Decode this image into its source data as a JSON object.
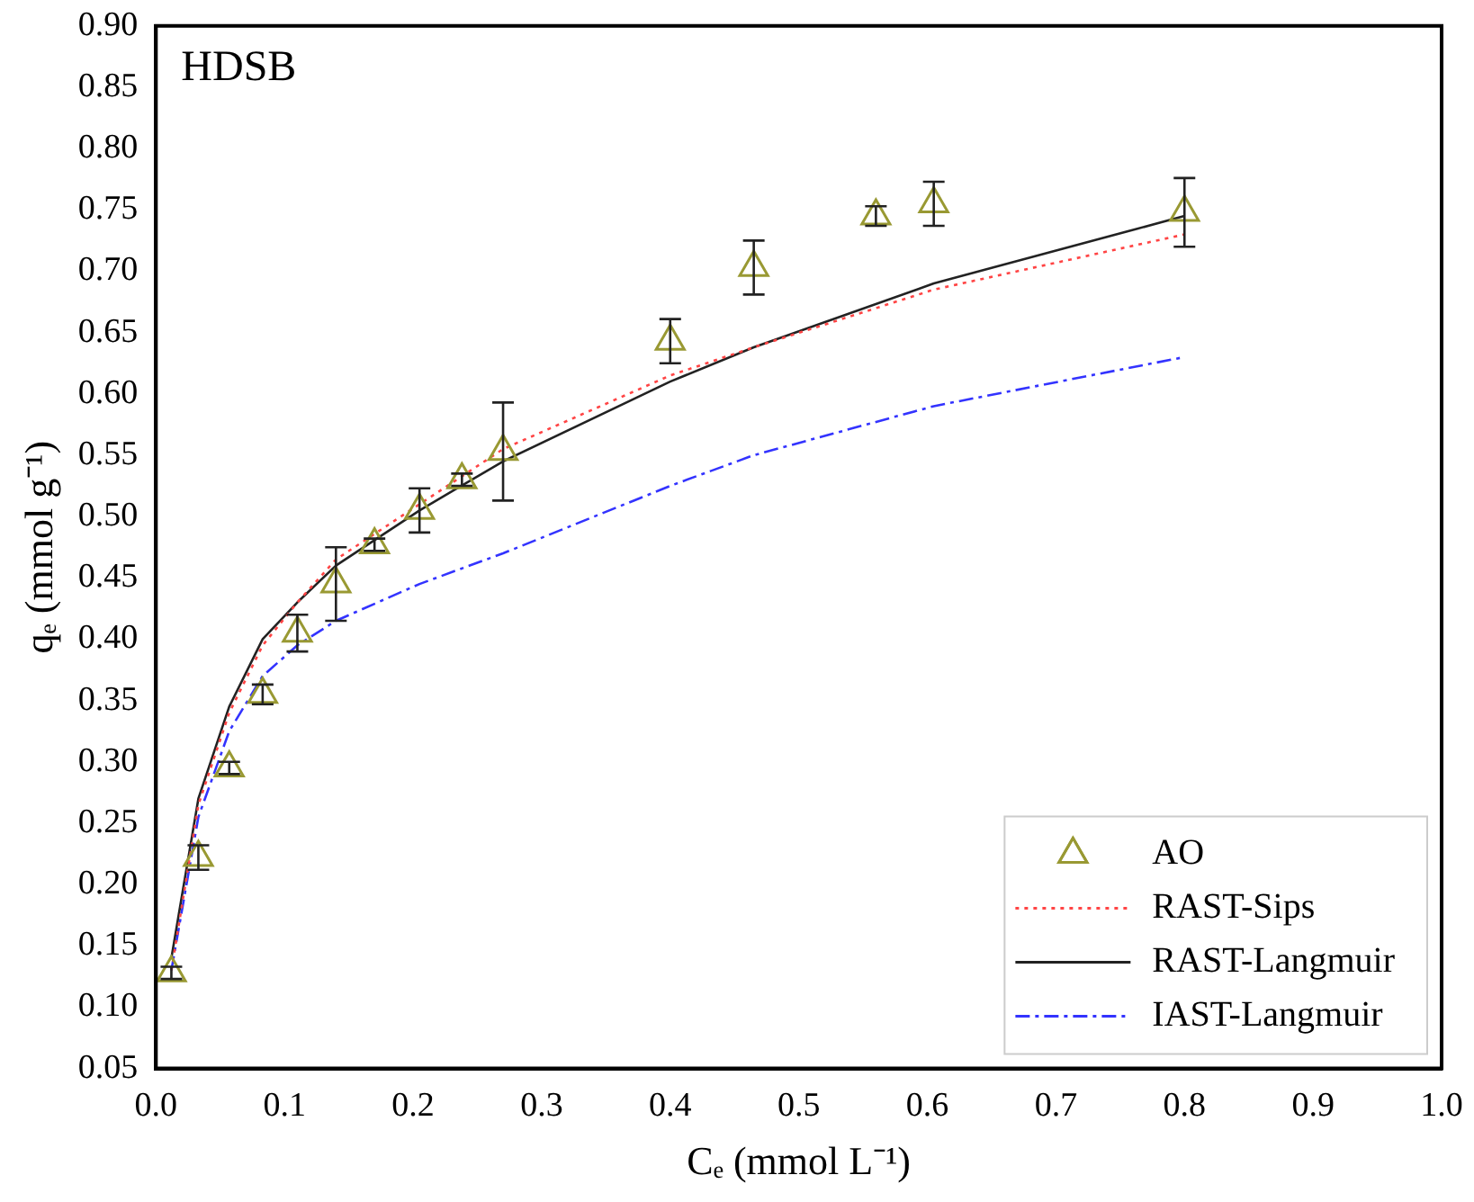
{
  "chart_data": {
    "type": "scatter",
    "xlabel": "Cₑ (mmol L⁻¹)",
    "ylabel": "qₑ (mmol g⁻¹)",
    "annotations": [
      "HDSB"
    ],
    "xlim": [
      0,
      1
    ],
    "ylim": [
      0.05,
      0.9
    ],
    "xticks": [
      {
        "value": 0,
        "label": "0.0"
      },
      {
        "value": 0.1,
        "label": "0.1"
      },
      {
        "value": 0.2,
        "label": "0.2"
      },
      {
        "value": 0.3,
        "label": "0.3"
      },
      {
        "value": 0.4,
        "label": "0.4"
      },
      {
        "value": 0.5,
        "label": "0.5"
      },
      {
        "value": 0.6,
        "label": "0.6"
      },
      {
        "value": 0.7,
        "label": "0.7"
      },
      {
        "value": 0.8,
        "label": "0.8"
      },
      {
        "value": 0.9,
        "label": "0.9"
      },
      {
        "value": 1,
        "label": "1.0"
      }
    ],
    "yticks": [
      {
        "value": 0.05,
        "label": "0.05"
      },
      {
        "value": 0.1,
        "label": "0.10"
      },
      {
        "value": 0.15,
        "label": "0.15"
      },
      {
        "value": 0.2,
        "label": "0.20"
      },
      {
        "value": 0.25,
        "label": "0.25"
      },
      {
        "value": 0.3,
        "label": "0.30"
      },
      {
        "value": 0.35,
        "label": "0.35"
      },
      {
        "value": 0.4,
        "label": "0.40"
      },
      {
        "value": 0.45,
        "label": "0.45"
      },
      {
        "value": 0.5,
        "label": "0.50"
      },
      {
        "value": 0.55,
        "label": "0.55"
      },
      {
        "value": 0.6,
        "label": "0.60"
      },
      {
        "value": 0.65,
        "label": "0.65"
      },
      {
        "value": 0.7,
        "label": "0.70"
      },
      {
        "value": 0.75,
        "label": "0.75"
      },
      {
        "value": 0.8,
        "label": "0.80"
      },
      {
        "value": 0.85,
        "label": "0.85"
      },
      {
        "value": 0.9,
        "label": "0.90"
      }
    ],
    "grid": false,
    "legend": "bottom right",
    "series": [
      {
        "name": "AO",
        "type": "scatter",
        "marker": "triangle",
        "color": "#999933",
        "x": [
          0.012,
          0.033,
          0.057,
          0.083,
          0.11,
          0.14,
          0.17,
          0.205,
          0.238,
          0.27,
          0.4,
          0.465,
          0.56,
          0.605,
          0.8
        ],
        "values": [
          0.128,
          0.222,
          0.295,
          0.355,
          0.405,
          0.445,
          0.477,
          0.505,
          0.53,
          0.553,
          0.643,
          0.703,
          0.745,
          0.755,
          0.748
        ],
        "errors": [
          0.005,
          0.01,
          0.005,
          0.008,
          0.015,
          0.03,
          0.005,
          0.018,
          0.005,
          0.04,
          0.018,
          0.022,
          0.008,
          0.018,
          0.028
        ]
      },
      {
        "name": "RAST-Sips",
        "type": "line",
        "marker": "none",
        "line_style": "dotted",
        "color": "#ff4444",
        "x": [
          0.012,
          0.033,
          0.057,
          0.083,
          0.11,
          0.14,
          0.205,
          0.27,
          0.4,
          0.465,
          0.605,
          0.8
        ],
        "values": [
          0.13,
          0.265,
          0.34,
          0.395,
          0.43,
          0.465,
          0.51,
          0.555,
          0.615,
          0.638,
          0.685,
          0.73
        ]
      },
      {
        "name": "RAST-Langmuir",
        "type": "line",
        "marker": "none",
        "line_style": "solid",
        "color": "#222222",
        "x": [
          0.012,
          0.033,
          0.057,
          0.083,
          0.11,
          0.14,
          0.205,
          0.27,
          0.4,
          0.465,
          0.605,
          0.8
        ],
        "values": [
          0.14,
          0.27,
          0.345,
          0.4,
          0.43,
          0.46,
          0.505,
          0.545,
          0.61,
          0.638,
          0.69,
          0.745
        ]
      },
      {
        "name": "IAST-Langmuir",
        "type": "line",
        "marker": "none",
        "line_style": "dashdot",
        "color": "#3333ff",
        "x": [
          0.012,
          0.033,
          0.057,
          0.083,
          0.11,
          0.14,
          0.205,
          0.27,
          0.4,
          0.465,
          0.605,
          0.8
        ],
        "values": [
          0.13,
          0.255,
          0.325,
          0.37,
          0.395,
          0.415,
          0.445,
          0.47,
          0.525,
          0.55,
          0.59,
          0.63
        ]
      }
    ]
  }
}
